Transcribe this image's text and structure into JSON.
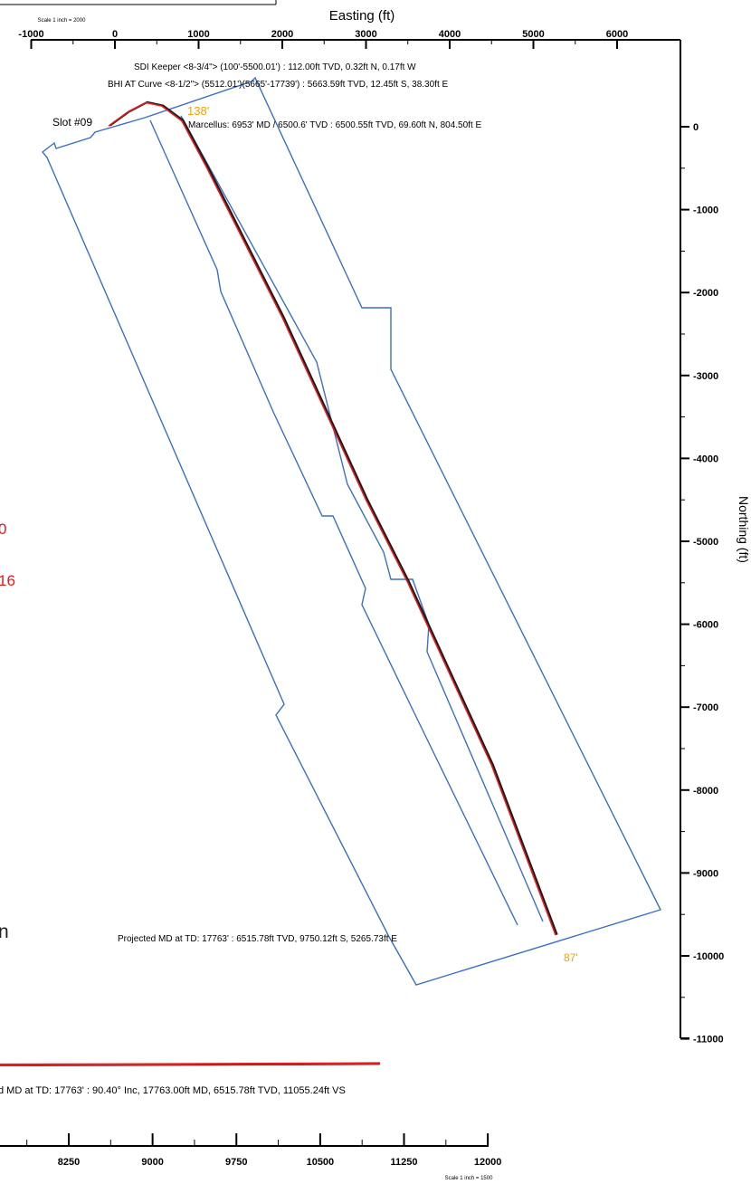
{
  "plan_view": {
    "scale_label": "Scale 1 inch = 2000",
    "xlabel": "Easting (ft)",
    "ylabel": "Northing (ft)",
    "slot_label": "Slot #09",
    "x_ticks": [
      "-1000",
      "0",
      "1000",
      "2000",
      "3000",
      "4000",
      "5000",
      "6000"
    ],
    "y_ticks": [
      "0",
      "-1000",
      "-2000",
      "-3000",
      "-4000",
      "-5000",
      "-6000",
      "-7000",
      "-8000",
      "-9000",
      "-10000",
      "-11000"
    ],
    "annotations": {
      "sdi": "SDI Keeper <8-3/4\"> (100'-5500.01') : 112.00ft TVD, 0.32ft N, 0.17ft W",
      "bhi": "BHI AT Curve <8-1/2\"> (5512.01')(5665'-17739') : 5663.59ft TVD, 12.45ft S, 38.30ft E",
      "marcellus": "Marcellus: 6953' MD / 6500.6' TVD : 6500.55ft TVD, 69.60ft N, 804.50ft E",
      "projected": "Projected MD at TD: 17763' : 6515.78ft TVD, 9750.12ft S, 5265.73ft E",
      "setback_top": "138'",
      "setback_bottom": "87'"
    },
    "left_fragments": [
      "0",
      "16",
      "n"
    ]
  },
  "section_view": {
    "annotation": "d MD at TD: 17763' : 90.40° Inc, 17763.00ft MD, 6515.78ft TVD, 11055.24ft VS",
    "x_ticks": [
      "8250",
      "9000",
      "9750",
      "10500",
      "11250",
      "12000"
    ],
    "scale_label": "Scale 1 inch = 1500"
  },
  "chart_data": {
    "type": "line",
    "title": "",
    "xlabel": "Easting (ft)",
    "ylabel": "Northing (ft)",
    "xlim": [
      -1000,
      6000
    ],
    "ylim": [
      -11000,
      0
    ],
    "series": [
      {
        "name": "",
        "color": "#e41a1c",
        "x": [
          -75,
          150,
          370,
          560,
          800,
          1100,
          1500,
          2000,
          2500,
          3000,
          3500,
          4000,
          4500,
          5266
        ],
        "y": [
          10,
          175,
          290,
          250,
          70,
          -500,
          -1300,
          -2300,
          -3400,
          -4500,
          -5500,
          -6600,
          -7700,
          -9750
        ]
      }
    ],
    "points": [
      {
        "label": "SDI Keeper",
        "x": -0.17,
        "y": 0.32
      },
      {
        "label": "BHI AT Curve",
        "x": 38.3,
        "y": -12.45
      },
      {
        "label": "Marcellus",
        "x": 804.5,
        "y": 69.6
      },
      {
        "label": "Projected MD at TD",
        "x": 5265.73,
        "y": -9750.12
      }
    ],
    "colors": {
      "boundary": "#3a6fc9",
      "wellpath": "#e41a1c",
      "setback": "#f5a000"
    }
  }
}
